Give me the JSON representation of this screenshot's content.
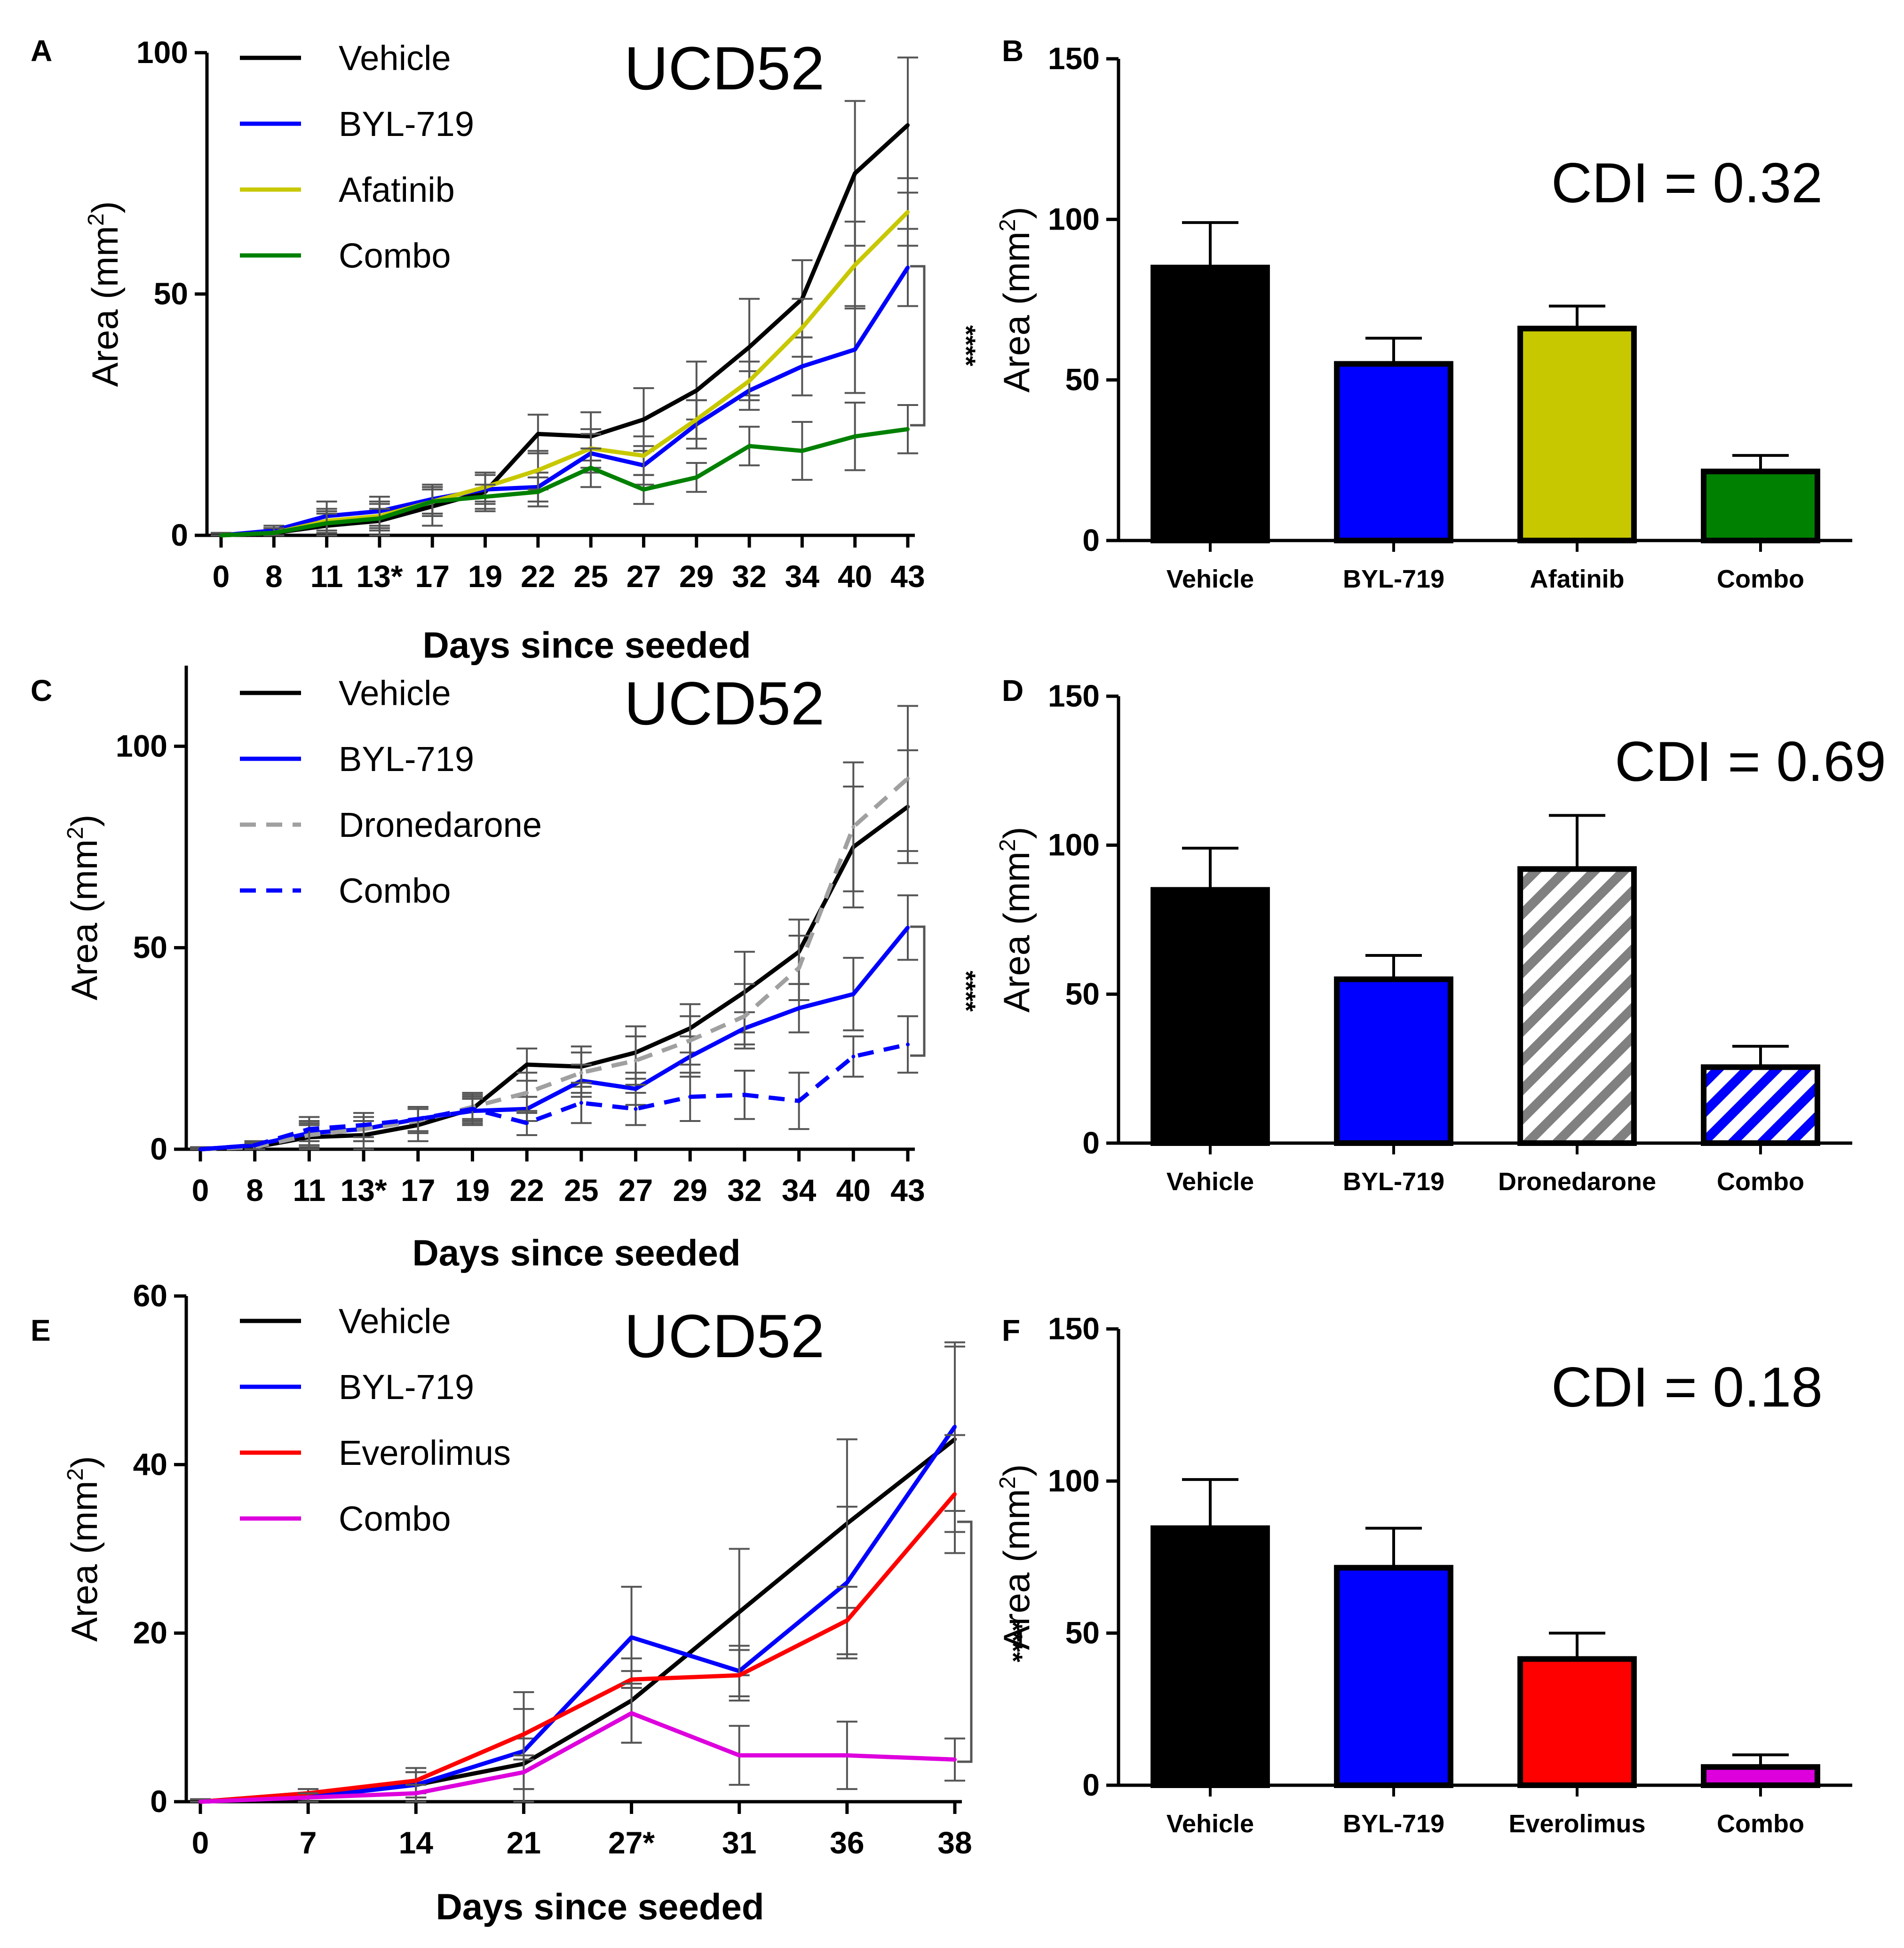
{
  "chart_data": [
    {
      "id": "A",
      "type": "line",
      "panel_label": "A",
      "title": "UCD52",
      "xlabel": "Days since seeded",
      "ylabel": "Area (mm",
      "ylabel_sup": "2",
      "ylabel_close": ")",
      "ylim": [
        0,
        100
      ],
      "yticks": [
        0,
        50,
        100
      ],
      "categories": [
        "0",
        "8",
        "11",
        "13*",
        "17",
        "19",
        "22",
        "25",
        "27",
        "29",
        "32",
        "34",
        "40",
        "43"
      ],
      "series": [
        {
          "name": "Vehicle",
          "color": "#000000",
          "dash": false,
          "values": [
            0,
            0.5,
            2,
            3,
            6,
            9,
            21,
            20.5,
            24,
            30,
            39,
            49,
            75,
            85
          ],
          "errors": [
            0.5,
            1,
            3,
            3.5,
            4,
            4,
            4,
            5,
            6.5,
            6,
            10,
            8,
            15,
            14
          ]
        },
        {
          "name": "BYL-719",
          "color": "#0000ff",
          "dash": false,
          "values": [
            0,
            1,
            4,
            5,
            7.5,
            9.5,
            10,
            17,
            14.5,
            23,
            30,
            35,
            38.5,
            55.5
          ],
          "errors": [
            0.5,
            1,
            3,
            3,
            3,
            3,
            3,
            4,
            4,
            5,
            4,
            6,
            9,
            8
          ]
        },
        {
          "name": "Afatinib",
          "color": "#c8c800",
          "dash": false,
          "values": [
            0,
            0.5,
            3,
            4,
            7,
            10,
            13.5,
            18,
            16.5,
            24,
            32,
            43,
            56,
            67
          ],
          "errors": [
            0.5,
            1,
            2.5,
            3,
            3,
            3,
            4,
            4,
            4,
            4,
            4,
            6,
            9,
            7
          ]
        },
        {
          "name": "Combo",
          "color": "#008000",
          "dash": false,
          "values": [
            0,
            0.5,
            2.5,
            3.5,
            7,
            8,
            9,
            14,
            9.5,
            12,
            18.5,
            17.5,
            20.5,
            22
          ],
          "errors": [
            0.5,
            1,
            2,
            2,
            2.5,
            2.5,
            3,
            4,
            3,
            3,
            4,
            6,
            7,
            5
          ]
        }
      ],
      "significance": "****"
    },
    {
      "id": "B",
      "type": "bar",
      "panel_label": "B",
      "annotation": "CDI = 0.32",
      "ylabel": "Area (mm",
      "ylabel_sup": "2",
      "ylabel_close": ")",
      "ylim": [
        0,
        150
      ],
      "yticks": [
        0,
        50,
        100,
        150
      ],
      "categories": [
        "Vehicle",
        "BYL-719",
        "Afatinib",
        "Combo"
      ],
      "values": [
        85,
        55,
        66,
        21.5
      ],
      "errors": [
        14,
        8,
        7,
        5
      ],
      "colors": [
        "#000000",
        "#0000ff",
        "#c8c800",
        "#008000"
      ],
      "patterns": [
        "solid",
        "solid",
        "solid",
        "solid"
      ]
    },
    {
      "id": "C",
      "type": "line",
      "panel_label": "C",
      "title": "UCD52",
      "xlabel": "Days since seeded",
      "ylabel": "Area (mm",
      "ylabel_sup": "2",
      "ylabel_close": ")",
      "ylim": [
        0,
        120
      ],
      "yticks": [
        0,
        50,
        100
      ],
      "categories": [
        "0",
        "8",
        "11",
        "13*",
        "17",
        "19",
        "22",
        "25",
        "27",
        "29",
        "32",
        "34",
        "40",
        "43"
      ],
      "series": [
        {
          "name": "Vehicle",
          "color": "#000000",
          "dash": false,
          "values": [
            0,
            0.5,
            3,
            3.5,
            6,
            10,
            21,
            20.5,
            24,
            30,
            39,
            49,
            75,
            85
          ],
          "errors": [
            0.5,
            1,
            3,
            3.5,
            4,
            4,
            4,
            5,
            6.5,
            6,
            10,
            8,
            15,
            14
          ]
        },
        {
          "name": "BYL-719",
          "color": "#0000ff",
          "dash": false,
          "values": [
            0,
            1,
            4,
            5,
            7.5,
            9.5,
            10,
            17,
            15,
            23,
            30,
            35,
            38.5,
            55
          ],
          "errors": [
            0.5,
            1,
            3,
            3,
            3,
            3,
            3,
            4,
            4,
            5,
            4,
            6,
            9,
            8
          ]
        },
        {
          "name": "Dronedarone",
          "color": "#a0a0a0",
          "dash": true,
          "values": [
            0,
            0.5,
            3.5,
            5,
            7,
            10.5,
            14,
            19,
            22,
            27,
            33,
            45,
            80,
            92
          ],
          "errors": [
            0.5,
            1,
            3,
            3,
            3,
            3,
            5,
            5,
            6,
            6,
            8,
            8,
            16,
            18
          ]
        },
        {
          "name": "Combo",
          "color": "#0000ff",
          "dash": true,
          "values": [
            0,
            1,
            5,
            6,
            7.5,
            10,
            6.5,
            11.5,
            10,
            13,
            13.5,
            12,
            23,
            26
          ],
          "errors": [
            0.5,
            1,
            3,
            3,
            3,
            3,
            3,
            5,
            4,
            6,
            6,
            7,
            5,
            7
          ]
        }
      ],
      "significance": "****"
    },
    {
      "id": "D",
      "type": "bar",
      "panel_label": "D",
      "annotation": "CDI = 0.69",
      "ylabel": "Area (mm",
      "ylabel_sup": "2",
      "ylabel_close": ")",
      "ylim": [
        0,
        150
      ],
      "yticks": [
        0,
        50,
        100,
        150
      ],
      "categories": [
        "Vehicle",
        "BYL-719",
        "Dronedarone",
        "Combo"
      ],
      "values": [
        85,
        55,
        92,
        25.5
      ],
      "errors": [
        14,
        8,
        18,
        7
      ],
      "colors": [
        "#000000",
        "#0000ff",
        "#808080",
        "#0000ff"
      ],
      "patterns": [
        "solid",
        "solid",
        "hatch",
        "hatch"
      ]
    },
    {
      "id": "E",
      "type": "line",
      "panel_label": "E",
      "title": "UCD52",
      "xlabel": "Days since seeded",
      "ylabel": "Area (mm",
      "ylabel_sup": "2",
      "ylabel_close": ")",
      "ylim": [
        0,
        60
      ],
      "yticks": [
        0,
        20,
        40,
        60
      ],
      "categories": [
        "0",
        "7",
        "14",
        "21",
        "27*",
        "31",
        "36",
        "38"
      ],
      "series": [
        {
          "name": "Vehicle",
          "color": "#000000",
          "dash": false,
          "values": [
            0,
            1,
            2,
            4.5,
            12,
            22.5,
            33,
            43
          ],
          "errors": [
            0.3,
            0.5,
            1.5,
            3,
            5,
            7.5,
            10,
            11
          ]
        },
        {
          "name": "BYL-719",
          "color": "#0000ff",
          "dash": false,
          "values": [
            0,
            0.5,
            2,
            6,
            19.5,
            15.5,
            26,
            44.5
          ],
          "errors": [
            0.3,
            0.5,
            1.5,
            7,
            6,
            3,
            9,
            10
          ]
        },
        {
          "name": "Everolimus",
          "color": "#ff0000",
          "dash": false,
          "values": [
            0,
            1,
            2.5,
            8,
            14.5,
            15,
            21.5,
            36.5
          ],
          "errors": [
            0.3,
            0.5,
            1.5,
            3,
            1,
            3,
            4,
            7
          ]
        },
        {
          "name": "Combo",
          "color": "#dd00dd",
          "dash": false,
          "values": [
            0,
            0.5,
            1,
            3.5,
            10.5,
            5.5,
            5.5,
            5
          ],
          "errors": [
            0.3,
            0.5,
            1,
            2,
            3.5,
            3.5,
            4,
            2.5
          ]
        }
      ],
      "significance": "****"
    },
    {
      "id": "F",
      "type": "bar",
      "panel_label": "F",
      "annotation": "CDI = 0.18",
      "ylabel": "Area (mm",
      "ylabel_sup": "2",
      "ylabel_close": ")",
      "ylim": [
        0,
        150
      ],
      "yticks": [
        0,
        50,
        100,
        150
      ],
      "categories": [
        "Vehicle",
        "BYL-719",
        "Everolimus",
        "Combo"
      ],
      "values": [
        84.5,
        71.5,
        41.5,
        6
      ],
      "errors": [
        16,
        13,
        8.5,
        4
      ],
      "colors": [
        "#000000",
        "#0000ff",
        "#ff0000",
        "#dd00dd"
      ],
      "patterns": [
        "solid",
        "solid",
        "solid",
        "solid"
      ]
    }
  ]
}
